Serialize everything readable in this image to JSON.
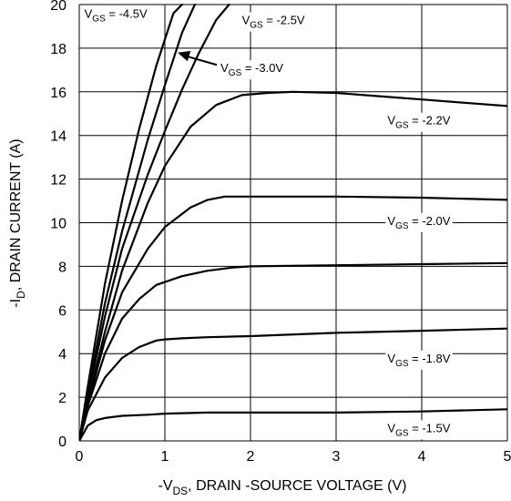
{
  "chart_data": {
    "type": "line",
    "title": "",
    "xlabel": {
      "prefix": "-V",
      "sub": "DS",
      "rest": ", DRAIN -SOURCE VOLTAGE (V)"
    },
    "ylabel": {
      "prefix": "-I",
      "sub": "D",
      "rest": ", DRAIN CURRENT (A)"
    },
    "xlim": [
      0,
      5
    ],
    "ylim": [
      0,
      20
    ],
    "xticks": [
      "0",
      "1",
      "2",
      "3",
      "4",
      "5"
    ],
    "yticks": [
      "0",
      "2",
      "4",
      "6",
      "8",
      "10",
      "12",
      "14",
      "16",
      "18",
      "20"
    ],
    "grid": true,
    "series": [
      {
        "id": "vgs_m4_5",
        "name": {
          "prefix": "V",
          "sub": "GS",
          "rest": " = -4.5V"
        },
        "x": [
          0,
          0.1,
          0.3,
          0.5,
          0.7,
          0.9,
          1.1,
          1.2
        ],
        "y": [
          0,
          2.5,
          7.2,
          11.0,
          14.3,
          17.2,
          19.6,
          20.0
        ]
      },
      {
        "id": "vgs_m3_0",
        "name": {
          "prefix": "V",
          "sub": "GS",
          "rest": " = -3.0V"
        },
        "x": [
          0,
          0.1,
          0.3,
          0.5,
          0.8,
          1.0,
          1.2,
          1.35
        ],
        "y": [
          0,
          2.2,
          6.3,
          9.6,
          13.8,
          16.3,
          18.7,
          20.0
        ]
      },
      {
        "id": "vgs_m2_5",
        "name": {
          "prefix": "V",
          "sub": "GS",
          "rest": " = -2.5V"
        },
        "x": [
          0,
          0.1,
          0.3,
          0.5,
          0.8,
          1.0,
          1.2,
          1.4,
          1.6,
          1.75
        ],
        "y": [
          0,
          2.0,
          5.7,
          8.8,
          12.2,
          14.2,
          16.1,
          17.8,
          19.3,
          20.0
        ]
      },
      {
        "id": "vgs_m2_2",
        "name": {
          "prefix": "V",
          "sub": "GS",
          "rest": " = -2.2V"
        },
        "x": [
          0,
          0.1,
          0.3,
          0.5,
          0.8,
          1.0,
          1.3,
          1.6,
          1.9,
          2.2,
          2.5,
          3.0,
          3.5,
          4.0,
          4.5,
          5.0
        ],
        "y": [
          0,
          1.8,
          5.0,
          7.8,
          10.9,
          12.6,
          14.4,
          15.4,
          15.85,
          15.95,
          16.0,
          15.95,
          15.8,
          15.65,
          15.5,
          15.35
        ]
      },
      {
        "id": "vgs_m2_0",
        "name": {
          "prefix": "V",
          "sub": "GS",
          "rest": " = -2.0V"
        },
        "x": [
          0,
          0.1,
          0.3,
          0.5,
          0.8,
          1.0,
          1.3,
          1.5,
          1.7,
          2.0,
          3.0,
          4.0,
          5.0
        ],
        "y": [
          0,
          1.7,
          4.6,
          6.8,
          8.8,
          9.8,
          10.7,
          11.05,
          11.2,
          11.2,
          11.2,
          11.15,
          11.05
        ]
      },
      {
        "id": "vgs_m1_8",
        "name": {
          "prefix": "V",
          "sub": "GS",
          "rest": " = -1.8V"
        },
        "x": [
          0,
          0.1,
          0.3,
          0.5,
          0.7,
          0.9,
          1.2,
          1.5,
          1.8,
          2.0,
          3.0,
          4.0,
          5.0
        ],
        "y": [
          0,
          1.6,
          4.0,
          5.6,
          6.5,
          7.15,
          7.55,
          7.8,
          7.95,
          8.0,
          8.05,
          8.1,
          8.15
        ]
      },
      {
        "id": "vgs_m1_6",
        "name": null,
        "x": [
          0,
          0.1,
          0.3,
          0.5,
          0.7,
          0.9,
          1.0,
          1.2,
          1.5,
          2.0,
          3.0,
          4.0,
          5.0
        ],
        "y": [
          0,
          1.4,
          2.9,
          3.8,
          4.3,
          4.6,
          4.65,
          4.7,
          4.75,
          4.8,
          4.95,
          5.05,
          5.15
        ]
      },
      {
        "id": "vgs_m1_5",
        "name": {
          "prefix": "V",
          "sub": "GS",
          "rest": " = -1.5V"
        },
        "x": [
          0,
          0.1,
          0.2,
          0.3,
          0.5,
          0.8,
          1.0,
          1.5,
          2.0,
          3.0,
          4.0,
          5.0
        ],
        "y": [
          0,
          0.7,
          0.95,
          1.05,
          1.15,
          1.2,
          1.25,
          1.3,
          1.3,
          1.3,
          1.35,
          1.45
        ]
      }
    ],
    "annotations": [
      {
        "for": "vgs_m4_5",
        "placement": "top-left",
        "x": 0.06,
        "y": 19.4
      },
      {
        "for": "vgs_m2_5",
        "placement": "top",
        "x": 1.9,
        "y": 19.1
      },
      {
        "for": "vgs_m3_0",
        "placement": "arrow",
        "x": 1.65,
        "y": 16.9,
        "arrow_to": [
          1.15,
          17.8
        ]
      },
      {
        "for": "vgs_m2_2",
        "placement": "right",
        "x": 3.6,
        "y": 14.5
      },
      {
        "for": "vgs_m2_0",
        "placement": "right",
        "x": 3.6,
        "y": 9.9
      },
      {
        "for": "vgs_m1_8",
        "placement": "right",
        "x": 3.6,
        "y": 3.6
      },
      {
        "for": "vgs_m1_5",
        "placement": "right",
        "x": 3.6,
        "y": 0.4
      }
    ]
  }
}
